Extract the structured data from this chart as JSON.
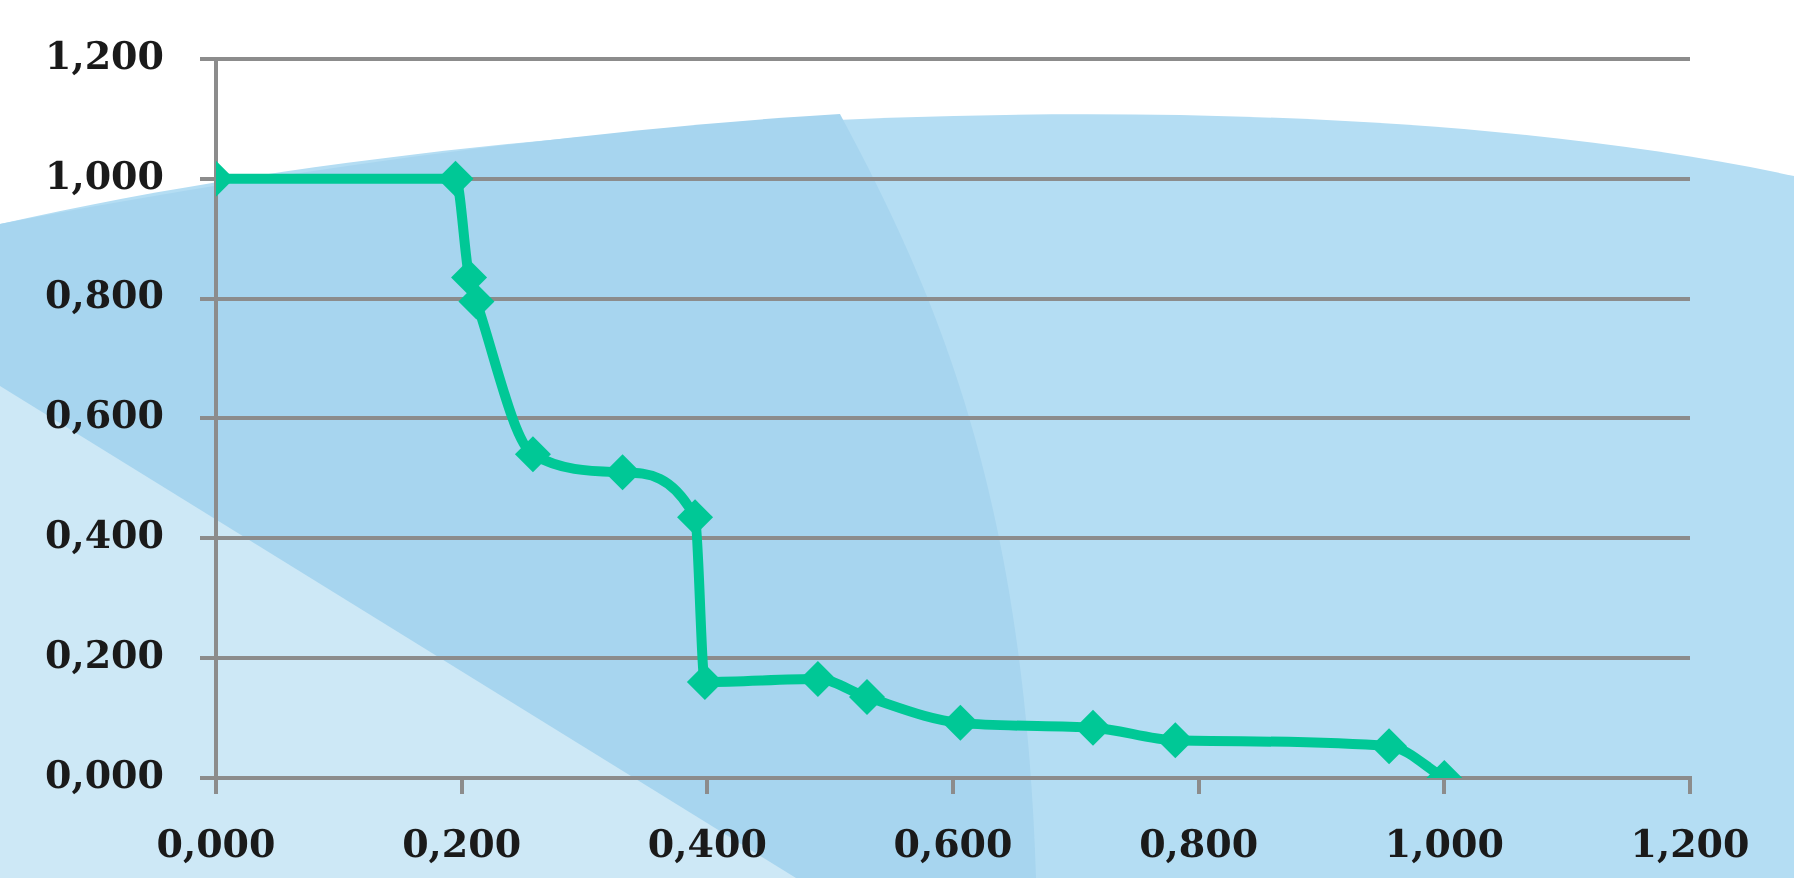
{
  "chart_data": {
    "type": "line",
    "x": [
      0,
      0.195,
      0.206,
      0.212,
      0.258,
      0.331,
      0.39,
      0.398,
      0.49,
      0.53,
      0.606,
      0.714,
      0.781,
      0.955,
      1.0
    ],
    "series": [
      {
        "color": "#00c896",
        "values": [
          1.0,
          1.0,
          0.835,
          0.795,
          0.54,
          0.51,
          0.435,
          0.16,
          0.165,
          0.135,
          0.092,
          0.084,
          0.063,
          0.053,
          0
        ]
      }
    ],
    "xlim": [
      0,
      1.2
    ],
    "xticks": [
      {
        "value": 0,
        "label": "0,000"
      },
      {
        "value": 0.2,
        "label": "0,200"
      },
      {
        "value": 0.4,
        "label": "0,400"
      },
      {
        "value": 0.6,
        "label": "0,600"
      },
      {
        "value": 0.8,
        "label": "0,800"
      },
      {
        "value": 1.0,
        "label": "1,000"
      },
      {
        "value": 1.2,
        "label": "1,200"
      }
    ],
    "ylim": [
      0,
      1.2
    ],
    "yticks": [
      {
        "value": 0,
        "label": "0,000"
      },
      {
        "value": 0.2,
        "label": "0,200"
      },
      {
        "value": 0.4,
        "label": "0,400"
      },
      {
        "value": 0.6,
        "label": "0,600"
      },
      {
        "value": 0.8,
        "label": "0,800"
      },
      {
        "value": 1.0,
        "label": "1,000"
      },
      {
        "value": 1.2,
        "label": "1,200"
      }
    ],
    "grid": "y",
    "legend": false,
    "marker": "diamond",
    "line_style": "solid"
  }
}
